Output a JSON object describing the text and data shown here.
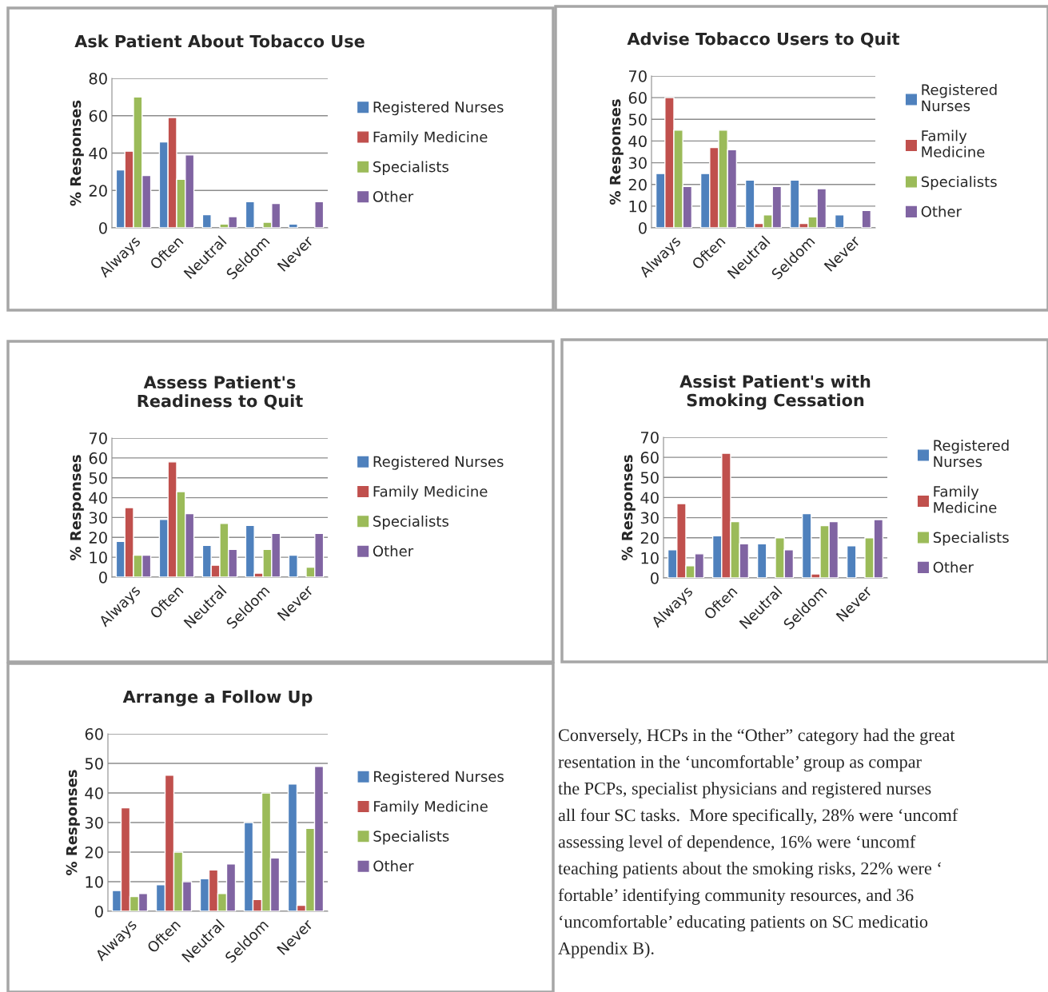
{
  "chart_data": [
    {
      "type": "bar",
      "title": "Ask Patient About Tobacco Use",
      "ylabel": "% Responses",
      "categories": [
        "Always",
        "Often",
        "Neutral",
        "Seldom",
        "Never"
      ],
      "ylim": [
        0,
        80
      ],
      "yticks": [
        0,
        20,
        40,
        60,
        80
      ],
      "grid": "y",
      "legend": "right",
      "series": [
        {
          "name": "Registered Nurses",
          "color": "#4f81bd",
          "values": [
            31,
            46,
            7,
            14,
            2
          ]
        },
        {
          "name": "Family Medicine",
          "color": "#c0504d",
          "values": [
            41,
            59,
            null,
            null,
            null
          ]
        },
        {
          "name": "Specialists",
          "color": "#9bbb59",
          "values": [
            70,
            26,
            2,
            3,
            null
          ]
        },
        {
          "name": "Other",
          "color": "#8064a2",
          "values": [
            28,
            39,
            6,
            13,
            14
          ]
        }
      ]
    },
    {
      "type": "bar",
      "title": "Advise Tobacco Users to Quit",
      "ylabel": "% Responses",
      "categories": [
        "Always",
        "Often",
        "Neutral",
        "Seldom",
        "Never"
      ],
      "ylim": [
        0,
        70
      ],
      "yticks": [
        0,
        10,
        20,
        30,
        40,
        50,
        60,
        70
      ],
      "grid": "y",
      "legend": "right",
      "series": [
        {
          "name": "Registered Nurses",
          "color": "#4f81bd",
          "values": [
            25,
            25,
            22,
            22,
            6
          ]
        },
        {
          "name": "Family Medicine",
          "color": "#c0504d",
          "values": [
            60,
            37,
            2,
            2,
            null
          ]
        },
        {
          "name": "Specialists",
          "color": "#9bbb59",
          "values": [
            45,
            45,
            6,
            5,
            null
          ]
        },
        {
          "name": "Other",
          "color": "#8064a2",
          "values": [
            19,
            36,
            19,
            18,
            8
          ]
        }
      ]
    },
    {
      "type": "bar",
      "title": "Assess Patient's Readiness to Quit",
      "ylabel": "% Responses",
      "categories": [
        "Always",
        "Often",
        "Neutral",
        "Seldom",
        "Never"
      ],
      "ylim": [
        0,
        70
      ],
      "yticks": [
        0,
        10,
        20,
        30,
        40,
        50,
        60,
        70
      ],
      "grid": "y",
      "legend": "right",
      "series": [
        {
          "name": "Registered Nurses",
          "color": "#4f81bd",
          "values": [
            18,
            29,
            16,
            26,
            11
          ]
        },
        {
          "name": "Family Medicine",
          "color": "#c0504d",
          "values": [
            35,
            58,
            6,
            2,
            null
          ]
        },
        {
          "name": "Specialists",
          "color": "#9bbb59",
          "values": [
            11,
            43,
            27,
            14,
            5
          ]
        },
        {
          "name": "Other",
          "color": "#8064a2",
          "values": [
            11,
            32,
            14,
            22,
            22
          ]
        }
      ]
    },
    {
      "type": "bar",
      "title": "Assist Patient's with  Smoking Cessation",
      "ylabel": "% Responses",
      "categories": [
        "Always",
        "Often",
        "Neutral",
        "Seldom",
        "Never"
      ],
      "ylim": [
        0,
        70
      ],
      "yticks": [
        0,
        10,
        20,
        30,
        40,
        50,
        60,
        70
      ],
      "grid": "y",
      "legend": "right",
      "series": [
        {
          "name": "Registered Nurses",
          "color": "#4f81bd",
          "values": [
            14,
            21,
            17,
            32,
            16
          ]
        },
        {
          "name": "Family Medicine",
          "color": "#c0504d",
          "values": [
            37,
            62,
            null,
            2,
            null
          ]
        },
        {
          "name": "Specialists",
          "color": "#9bbb59",
          "values": [
            6,
            28,
            20,
            26,
            20
          ]
        },
        {
          "name": "Other",
          "color": "#8064a2",
          "values": [
            12,
            17,
            14,
            28,
            29
          ]
        }
      ]
    },
    {
      "type": "bar",
      "title": "Arrange a Follow Up",
      "ylabel": "% Responses",
      "categories": [
        "Always",
        "Often",
        "Neutral",
        "Seldom",
        "Never"
      ],
      "ylim": [
        0,
        60
      ],
      "yticks": [
        0,
        10,
        20,
        30,
        40,
        50,
        60
      ],
      "grid": "y",
      "legend": "right",
      "series": [
        {
          "name": "Registered Nurses",
          "color": "#4f81bd",
          "values": [
            7,
            9,
            11,
            30,
            43
          ]
        },
        {
          "name": "Family Medicine",
          "color": "#c0504d",
          "values": [
            35,
            46,
            14,
            4,
            2
          ]
        },
        {
          "name": "Specialists",
          "color": "#9bbb59",
          "values": [
            5,
            20,
            6,
            40,
            28
          ]
        },
        {
          "name": "Other",
          "color": "#8064a2",
          "values": [
            6,
            10,
            16,
            18,
            49
          ]
        }
      ]
    },
    {
      "type": "other",
      "annotations": [
        "Conversely, HCPs in the “Other” category had the great",
        "resentation in the ‘uncomfortable’ group as compar",
        "the PCPs, specialist physicians and registered nurses",
        "all four SC tasks.  More specifically, 28% were ‘uncomf",
        "assessing level of dependence, 16% were ‘uncomf",
        "teaching patients about the smoking risks, 22% were ‘",
        "fortable’ identifying community resources, and 36",
        "‘uncomfortable’ educating patients on SC medicatio",
        "Appendix B)."
      ]
    }
  ]
}
